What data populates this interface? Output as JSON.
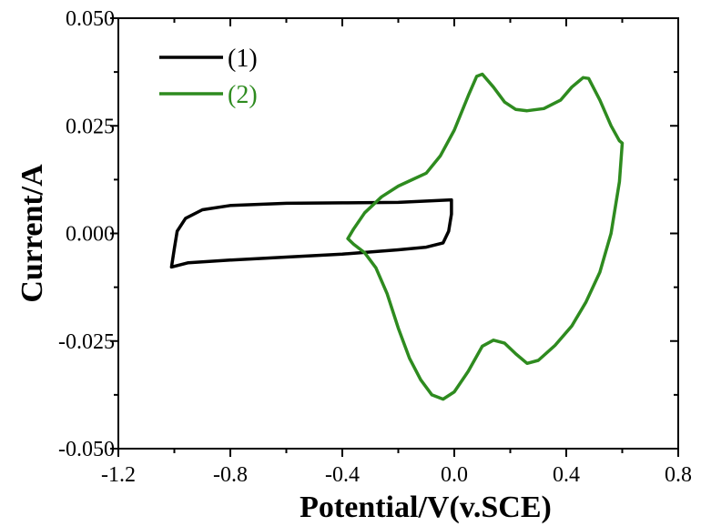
{
  "chart_data": {
    "type": "line",
    "title": "",
    "xlabel": "Potential/V(v.SCE)",
    "ylabel": "Current/A",
    "xlim": [
      -1.2,
      0.8
    ],
    "ylim": [
      -0.05,
      0.05
    ],
    "x_ticks": [
      -1.2,
      -0.8,
      -0.4,
      0.0,
      0.4,
      0.8
    ],
    "x_tick_labels": [
      "-1.2",
      "-0.8",
      "-0.4",
      "0.0",
      "0.4",
      "0.8"
    ],
    "y_ticks": [
      -0.05,
      -0.025,
      0.0,
      0.025,
      0.05
    ],
    "y_tick_labels": [
      "-0.050",
      "-0.025",
      "0.000",
      "0.025",
      "0.050"
    ],
    "grid": false,
    "legend_position": "top-left",
    "series": [
      {
        "name": "(1)",
        "color": "#000000",
        "points": [
          [
            -0.01,
            0.0078
          ],
          [
            -0.2,
            0.0072
          ],
          [
            -0.4,
            0.0071
          ],
          [
            -0.6,
            0.007
          ],
          [
            -0.8,
            0.0065
          ],
          [
            -0.9,
            0.0055
          ],
          [
            -0.96,
            0.0035
          ],
          [
            -0.99,
            0.0005
          ],
          [
            -1.0,
            -0.0035
          ],
          [
            -1.01,
            -0.0078
          ],
          [
            -0.95,
            -0.0068
          ],
          [
            -0.8,
            -0.0062
          ],
          [
            -0.6,
            -0.0055
          ],
          [
            -0.4,
            -0.0048
          ],
          [
            -0.2,
            -0.0038
          ],
          [
            -0.1,
            -0.0032
          ],
          [
            -0.04,
            -0.0022
          ],
          [
            -0.02,
            0.0005
          ],
          [
            -0.01,
            0.0045
          ],
          [
            -0.01,
            0.0078
          ]
        ]
      },
      {
        "name": "(2)",
        "color": "#2e8b1f",
        "points": [
          [
            -0.38,
            -0.0012
          ],
          [
            -0.36,
            0.001
          ],
          [
            -0.32,
            0.0048
          ],
          [
            -0.26,
            0.0085
          ],
          [
            -0.2,
            0.011
          ],
          [
            -0.15,
            0.0125
          ],
          [
            -0.1,
            0.014
          ],
          [
            -0.05,
            0.018
          ],
          [
            0.0,
            0.024
          ],
          [
            0.05,
            0.032
          ],
          [
            0.08,
            0.0365
          ],
          [
            0.1,
            0.037
          ],
          [
            0.14,
            0.034
          ],
          [
            0.18,
            0.0305
          ],
          [
            0.22,
            0.0288
          ],
          [
            0.26,
            0.0285
          ],
          [
            0.32,
            0.029
          ],
          [
            0.38,
            0.031
          ],
          [
            0.42,
            0.034
          ],
          [
            0.46,
            0.0362
          ],
          [
            0.48,
            0.036
          ],
          [
            0.52,
            0.031
          ],
          [
            0.56,
            0.025
          ],
          [
            0.59,
            0.0215
          ],
          [
            0.6,
            0.021
          ],
          [
            0.59,
            0.012
          ],
          [
            0.56,
            0.0
          ],
          [
            0.52,
            -0.009
          ],
          [
            0.47,
            -0.016
          ],
          [
            0.42,
            -0.0215
          ],
          [
            0.36,
            -0.026
          ],
          [
            0.3,
            -0.0295
          ],
          [
            0.26,
            -0.0302
          ],
          [
            0.22,
            -0.028
          ],
          [
            0.18,
            -0.0255
          ],
          [
            0.14,
            -0.0248
          ],
          [
            0.1,
            -0.0262
          ],
          [
            0.05,
            -0.032
          ],
          [
            0.0,
            -0.0368
          ],
          [
            -0.04,
            -0.0385
          ],
          [
            -0.08,
            -0.0375
          ],
          [
            -0.12,
            -0.034
          ],
          [
            -0.16,
            -0.029
          ],
          [
            -0.2,
            -0.022
          ],
          [
            -0.24,
            -0.014
          ],
          [
            -0.28,
            -0.008
          ],
          [
            -0.32,
            -0.0045
          ],
          [
            -0.36,
            -0.0025
          ],
          [
            -0.38,
            -0.0012
          ]
        ]
      }
    ]
  }
}
